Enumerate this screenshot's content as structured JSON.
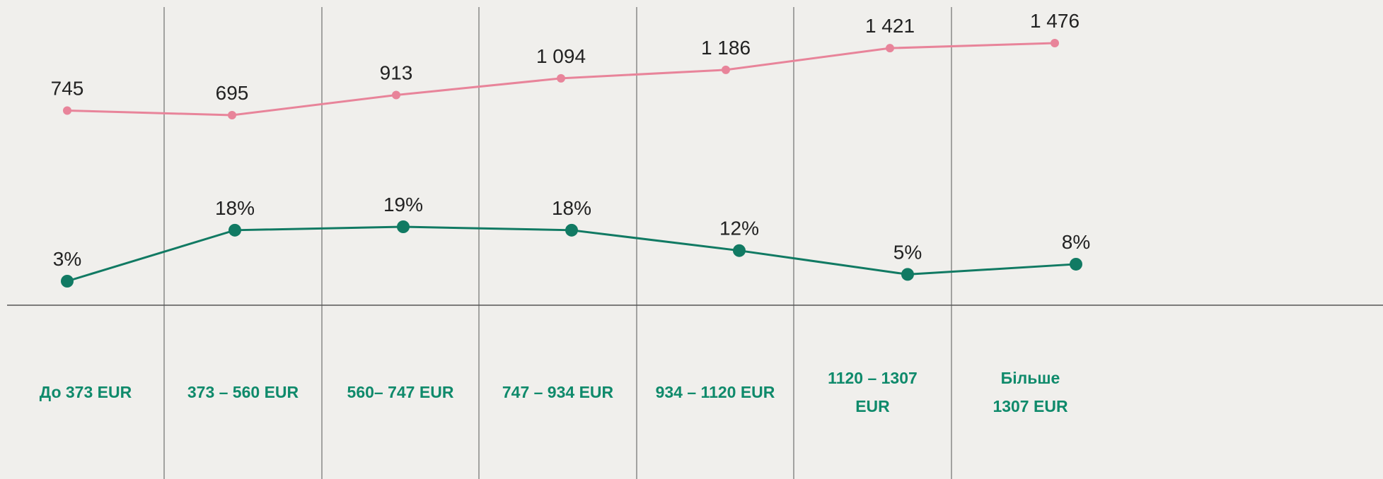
{
  "chart_data": {
    "type": "line",
    "categories": [
      "До 373 EUR",
      "373 – 560 EUR",
      "560– 747 EUR",
      "747 – 934 EUR",
      "934 – 1120 EUR",
      "1120 – 1307\nEUR",
      "Більше\n1307 EUR"
    ],
    "series": [
      {
        "color": "#e8849a",
        "values": [
          745,
          695,
          913,
          1094,
          1186,
          1421,
          1476
        ],
        "value_labels": [
          "745",
          "695",
          "913",
          "1 094",
          "1 186",
          "1 421",
          "1 476"
        ]
      },
      {
        "color": "#117a63",
        "values": [
          3,
          18,
          19,
          18,
          12,
          5,
          8
        ],
        "value_labels": [
          "3%",
          "18%",
          "19%",
          "18%",
          "12%",
          "5%",
          "8%"
        ]
      }
    ]
  }
}
